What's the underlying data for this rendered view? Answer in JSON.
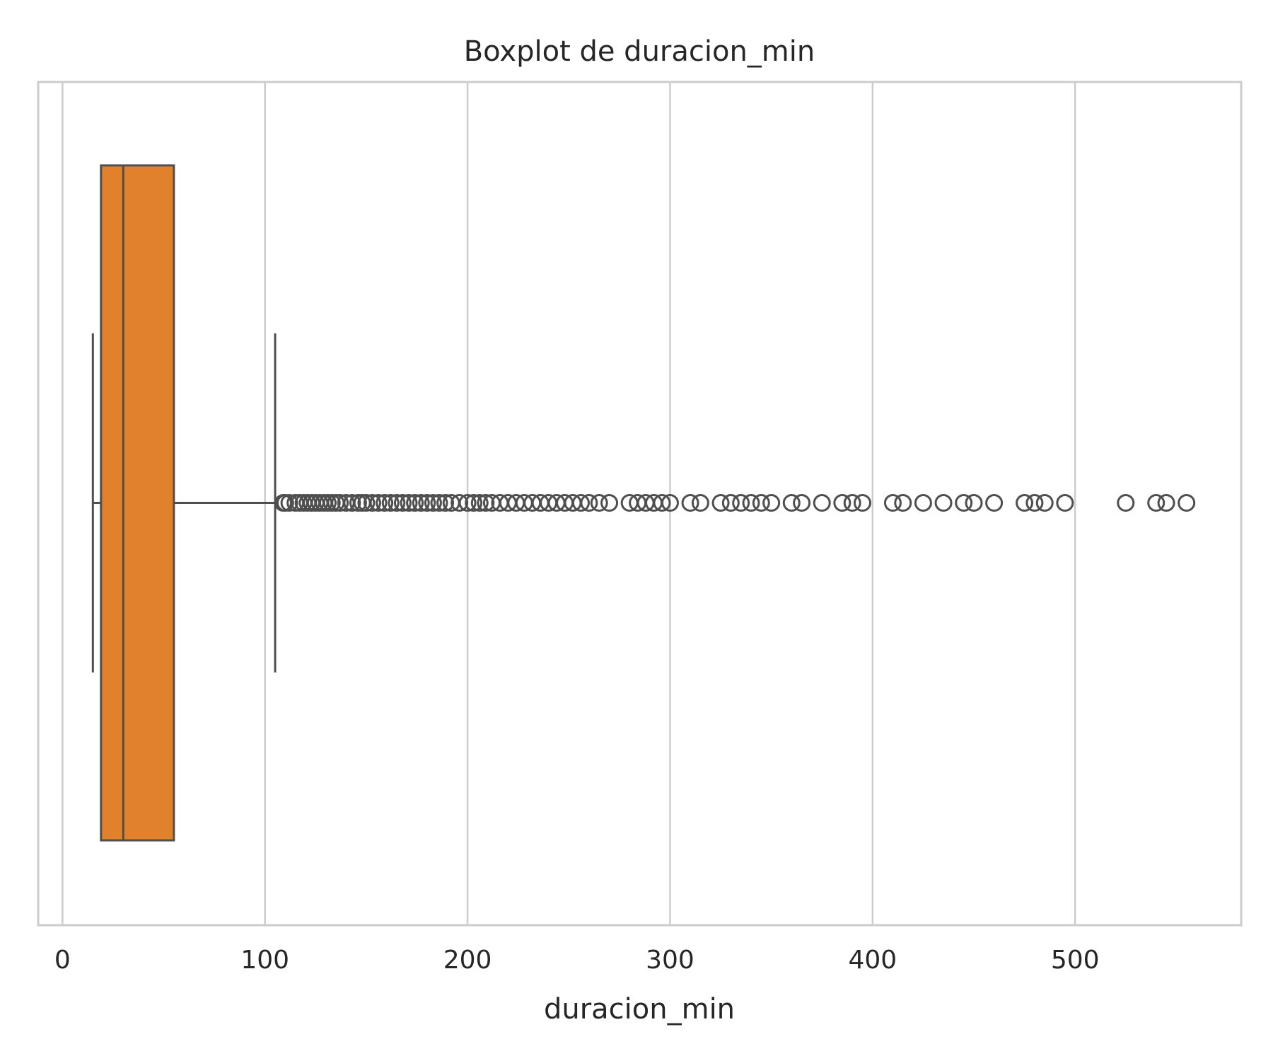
{
  "chart_data": {
    "type": "boxplot",
    "title": "Boxplot de duracion_min",
    "xlabel": "duracion_min",
    "ylabel": "",
    "xlim": [
      -12,
      582
    ],
    "xticks": [
      0,
      100,
      200,
      300,
      400,
      500
    ],
    "grid": "vertical",
    "orientation": "horizontal",
    "box": {
      "whisker_low": 15,
      "q1": 19,
      "median": 30,
      "q3": 55,
      "whisker_high": 105
    },
    "outliers": [
      109,
      110,
      112,
      115,
      117,
      119,
      121,
      123,
      125,
      127,
      129,
      131,
      133,
      135,
      137,
      140,
      143,
      146,
      148,
      150,
      153,
      156,
      159,
      162,
      165,
      168,
      171,
      174,
      177,
      180,
      183,
      186,
      189,
      192,
      196,
      200,
      203,
      206,
      209,
      212,
      216,
      220,
      224,
      228,
      232,
      236,
      240,
      244,
      248,
      252,
      256,
      260,
      265,
      270,
      280,
      284,
      288,
      292,
      296,
      300,
      310,
      315,
      325,
      330,
      335,
      340,
      345,
      350,
      360,
      365,
      375,
      385,
      390,
      395,
      410,
      415,
      425,
      435,
      445,
      450,
      460,
      475,
      480,
      485,
      495,
      525,
      540,
      545,
      555
    ],
    "colors": {
      "box_fill": "#e1812c",
      "line": "#4f4f4f",
      "grid": "#cccccc",
      "frame": "#cccccc",
      "outlier_edge": "#4f4f4f"
    }
  }
}
